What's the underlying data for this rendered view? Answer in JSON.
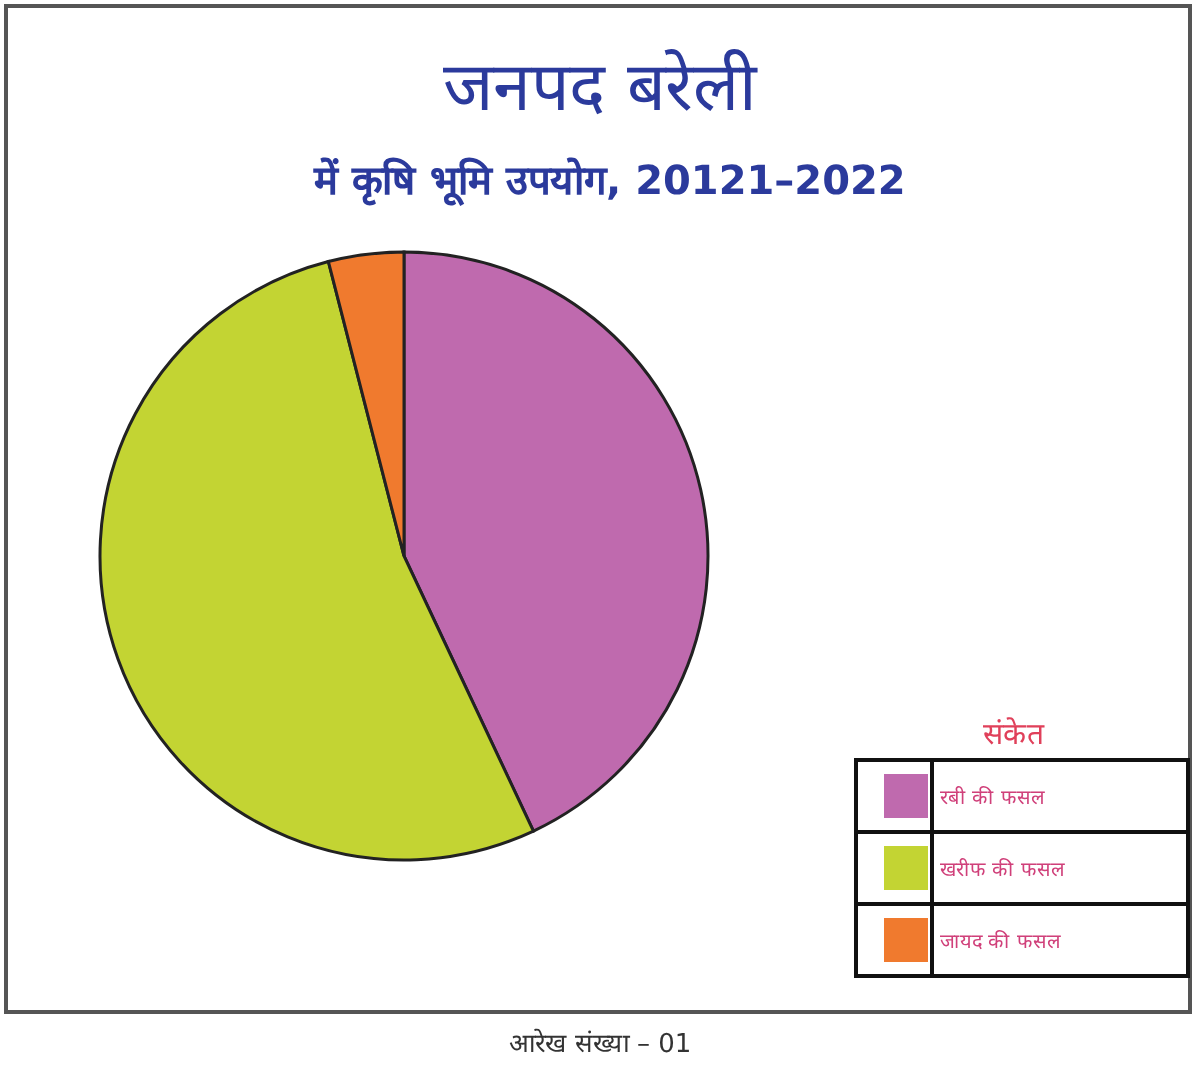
{
  "chart_data": {
    "type": "pie",
    "title": "जनपद बरेली",
    "subtitle": "में कृषि भूमि उपयोग, 20121–2022",
    "legend_title": "संकेत",
    "legend": "bottom right",
    "categories": [
      "रबी की फसल",
      "खरीफ की फसल",
      "जायद की फसल"
    ],
    "values": [
      43,
      53,
      4
    ],
    "colors": [
      "#bf6aae",
      "#c3d433",
      "#f07a2e"
    ],
    "annotations": [
      "आरेख संख्या – 01"
    ]
  }
}
